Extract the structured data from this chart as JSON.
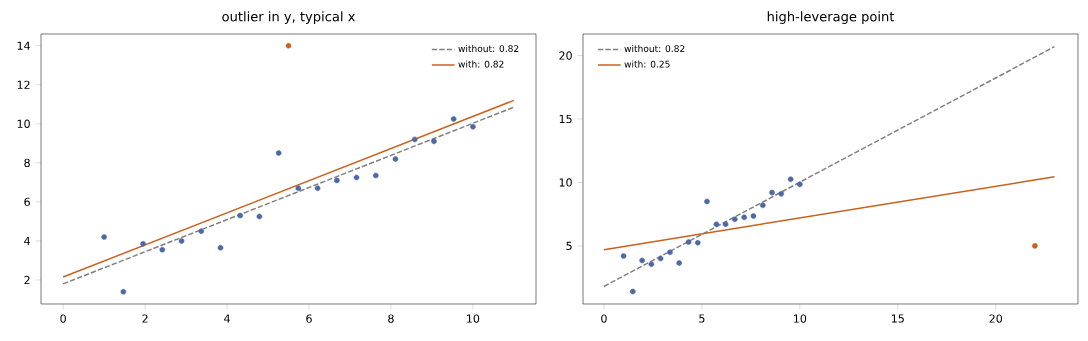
{
  "chart_data": [
    {
      "type": "scatter",
      "title": "outlier in y, typical x",
      "xlim": [
        -0.54,
        11.54
      ],
      "ylim": [
        0.77,
        14.6
      ],
      "xticks": [
        0,
        2,
        4,
        6,
        8,
        10
      ],
      "yticks": [
        2,
        4,
        6,
        8,
        10,
        12,
        14
      ],
      "legend": "top right",
      "grid": false,
      "series": [
        {
          "color": "#4c68a6",
          "marker": "circle",
          "x": [
            1.0,
            1.47,
            1.95,
            2.42,
            2.89,
            3.37,
            3.84,
            4.32,
            4.79,
            5.26,
            5.74,
            6.21,
            6.68,
            7.16,
            7.63,
            8.11,
            8.58,
            9.05,
            9.53,
            10.0
          ],
          "values": [
            4.2,
            1.4,
            3.85,
            3.55,
            4.0,
            4.5,
            3.65,
            5.3,
            5.25,
            8.5,
            6.7,
            6.7,
            7.1,
            7.25,
            7.35,
            8.2,
            9.2,
            9.1,
            10.25,
            9.85
          ]
        },
        {
          "color": "#c8601e",
          "marker": "circle",
          "x": [
            5.5
          ],
          "values": [
            14
          ]
        },
        {
          "type": "line",
          "name": "without: 0.82",
          "color": "#7f7f7f",
          "line_style": "dashed",
          "x": [
            0,
            11
          ],
          "values": [
            1.8,
            10.85
          ]
        },
        {
          "type": "line",
          "name": "with: 0.82",
          "color": "#c8601e",
          "line_style": "solid",
          "x": [
            0,
            11
          ],
          "values": [
            2.15,
            11.2
          ]
        }
      ]
    },
    {
      "type": "scatter",
      "title": "high-leverage point",
      "xlim": [
        -1.07,
        24.2
      ],
      "ylim": [
        0.42,
        21.7
      ],
      "xticks": [
        0,
        5,
        10,
        15,
        20
      ],
      "yticks": [
        5,
        10,
        15,
        20
      ],
      "legend": "top left",
      "grid": false,
      "series": [
        {
          "color": "#4c68a6",
          "marker": "circle",
          "x": [
            1.0,
            1.47,
            1.95,
            2.42,
            2.89,
            3.37,
            3.84,
            4.32,
            4.79,
            5.26,
            5.74,
            6.21,
            6.68,
            7.16,
            7.63,
            8.11,
            8.58,
            9.05,
            9.53,
            10.0
          ],
          "values": [
            4.2,
            1.4,
            3.85,
            3.55,
            4.0,
            4.5,
            3.65,
            5.3,
            5.25,
            8.5,
            6.7,
            6.7,
            7.1,
            7.25,
            7.35,
            8.2,
            9.2,
            9.1,
            10.25,
            9.85
          ]
        },
        {
          "color": "#c8601e",
          "marker": "circle",
          "x": [
            22
          ],
          "values": [
            5
          ]
        },
        {
          "type": "line",
          "name": "without: 0.82",
          "color": "#7f7f7f",
          "line_style": "dashed",
          "x": [
            0,
            23
          ],
          "values": [
            1.8,
            20.7
          ]
        },
        {
          "type": "line",
          "name": "with: 0.25",
          "color": "#c8601e",
          "line_style": "solid",
          "x": [
            0,
            23
          ],
          "values": [
            4.7,
            10.45
          ]
        }
      ]
    }
  ]
}
